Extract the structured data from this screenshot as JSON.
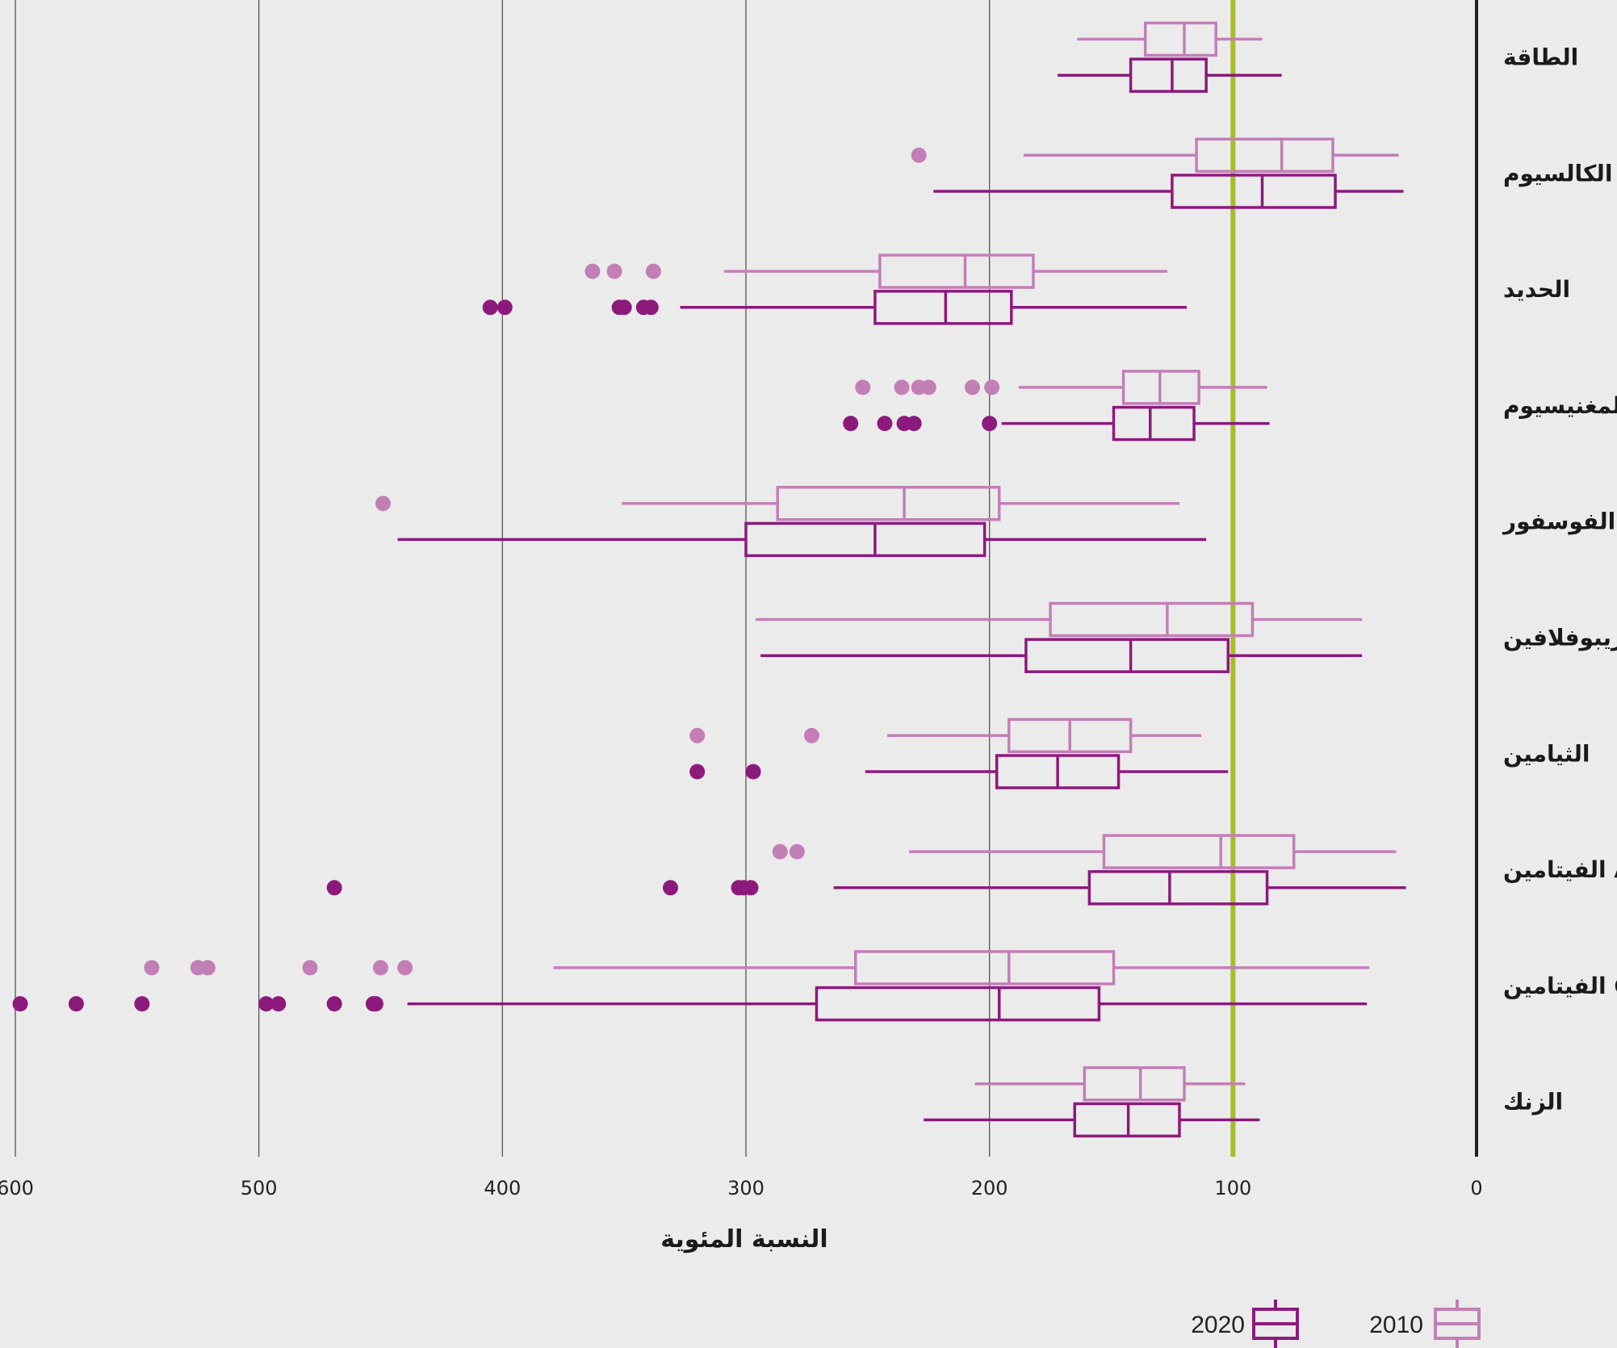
{
  "chart_data": {
    "type": "boxplot",
    "orientation": "horizontal",
    "x_reversed": true,
    "xlabel": "النسبة المئوية",
    "xlim": [
      0,
      600
    ],
    "xticks": [
      "600",
      "500",
      "400",
      "300",
      "200",
      "100",
      "0"
    ],
    "xtick_values": [
      600,
      500,
      400,
      300,
      200,
      100,
      0
    ],
    "reference_line": 100,
    "grid": true,
    "legend_position": "bottom-right",
    "colors": {
      "2010": "#c27fb6",
      "2020": "#8c1a7c",
      "reference": "#a9bb2b",
      "grid": "#555555"
    },
    "series_names": [
      "2020",
      "2010"
    ],
    "categories": [
      {
        "name": "الطاقة",
        "2010": {
          "whisker": [
            88,
            164
          ],
          "q1": 107,
          "median": 120,
          "q3": 136,
          "outliers": []
        },
        "2020": {
          "whisker": [
            80,
            172
          ],
          "q1": 111,
          "median": 125,
          "q3": 142,
          "outliers": []
        }
      },
      {
        "name": "الكالسيوم",
        "2010": {
          "whisker": [
            32,
            186
          ],
          "q1": 59,
          "median": 80,
          "q3": 115,
          "outliers": [
            229
          ]
        },
        "2020": {
          "whisker": [
            30,
            223
          ],
          "q1": 58,
          "median": 88,
          "q3": 125,
          "outliers": []
        }
      },
      {
        "name": "الحديد",
        "2010": {
          "whisker": [
            127,
            309
          ],
          "q1": 182,
          "median": 210,
          "q3": 245,
          "outliers": [
            363,
            354,
            338
          ]
        },
        "2020": {
          "whisker": [
            119,
            327
          ],
          "q1": 191,
          "median": 218,
          "q3": 247,
          "outliers": [
            405,
            399,
            352,
            350,
            342,
            339
          ]
        }
      },
      {
        "name": "المغنيسيوم",
        "2010": {
          "whisker": [
            86,
            188
          ],
          "q1": 114,
          "median": 130,
          "q3": 145,
          "outliers": [
            252,
            236,
            229,
            225,
            207,
            199
          ]
        },
        "2020": {
          "whisker": [
            85,
            195
          ],
          "q1": 116,
          "median": 134,
          "q3": 149,
          "outliers": [
            257,
            243,
            235,
            231,
            200
          ]
        }
      },
      {
        "name": "الفوسفور",
        "2010": {
          "whisker": [
            122,
            351
          ],
          "q1": 196,
          "median": 235,
          "q3": 287,
          "outliers": [
            449
          ]
        },
        "2020": {
          "whisker": [
            111,
            443
          ],
          "q1": 202,
          "median": 247,
          "q3": 300,
          "outliers": []
        }
      },
      {
        "name": "الريبوفلافين",
        "2010": {
          "whisker": [
            47,
            296
          ],
          "q1": 92,
          "median": 127,
          "q3": 175,
          "outliers": []
        },
        "2020": {
          "whisker": [
            47,
            294
          ],
          "q1": 102,
          "median": 142,
          "q3": 185,
          "outliers": []
        }
      },
      {
        "name": "الثيامين",
        "2010": {
          "whisker": [
            113,
            242
          ],
          "q1": 142,
          "median": 167,
          "q3": 192,
          "outliers": [
            320,
            273
          ]
        },
        "2020": {
          "whisker": [
            102,
            251
          ],
          "q1": 147,
          "median": 172,
          "q3": 197,
          "outliers": [
            320,
            297
          ]
        }
      },
      {
        "name": "الفيتامين A",
        "2010": {
          "whisker": [
            33,
            233
          ],
          "q1": 75,
          "median": 105,
          "q3": 153,
          "outliers": [
            286,
            279
          ]
        },
        "2020": {
          "whisker": [
            29,
            264
          ],
          "q1": 86,
          "median": 126,
          "q3": 159,
          "outliers": [
            469,
            331,
            303,
            301,
            298
          ]
        }
      },
      {
        "name": "الفيتامين C",
        "2010": {
          "whisker": [
            44,
            379
          ],
          "q1": 149,
          "median": 192,
          "q3": 255,
          "outliers": [
            544,
            525,
            521,
            479,
            450,
            440
          ]
        },
        "2020": {
          "whisker": [
            45,
            439
          ],
          "q1": 155,
          "median": 196,
          "q3": 271,
          "outliers": [
            598,
            575,
            548,
            497,
            492,
            469,
            453,
            452
          ]
        }
      },
      {
        "name": "الزنك",
        "2010": {
          "whisker": [
            95,
            206
          ],
          "q1": 120,
          "median": 138,
          "q3": 161,
          "outliers": []
        },
        "2020": {
          "whisker": [
            89,
            227
          ],
          "q1": 122,
          "median": 143,
          "q3": 165,
          "outliers": []
        }
      }
    ]
  }
}
